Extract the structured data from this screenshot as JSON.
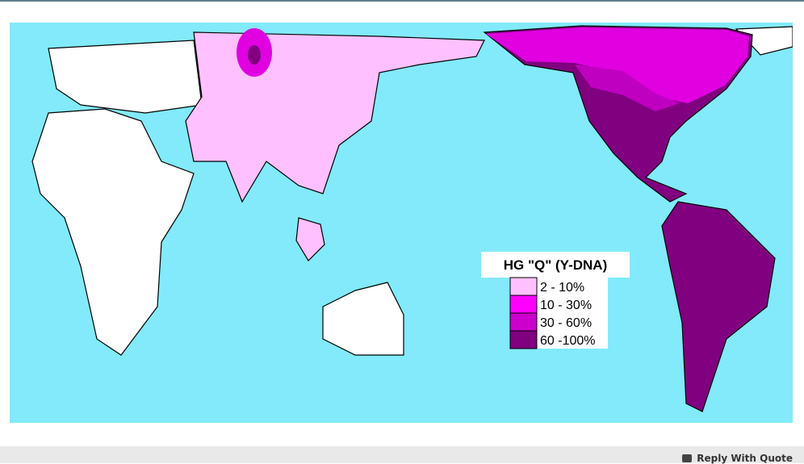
{
  "map": {
    "legend": {
      "title": "HG  \"Q\" (Y-DNA)",
      "items": [
        "2  - 10%",
        "10 - 30%",
        "30 - 60%",
        "60 -100%"
      ]
    }
  },
  "footer": {
    "reply_button": "Reply With Quote"
  }
}
